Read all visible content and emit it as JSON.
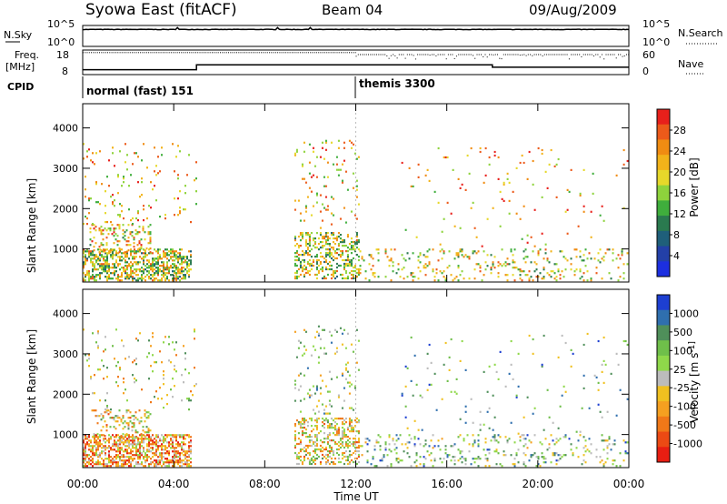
{
  "header": {
    "station": "Syowa East (fitACF)",
    "beam": "Beam 04",
    "date": "09/Aug/2009"
  },
  "chart_data": [
    {
      "type": "line",
      "panel": "noise",
      "left_label": "N.Sky",
      "right_label": "N.Search",
      "left_ticks": [
        "10^5",
        "10^0"
      ],
      "right_ticks": [
        "10^5",
        "10^0"
      ],
      "series": [
        {
          "name": "N.Sky",
          "style": "solid",
          "description_level": 0.85
        },
        {
          "name": "N.Search",
          "style": "dotted"
        }
      ],
      "ylim": [
        0,
        5
      ]
    },
    {
      "type": "line",
      "panel": "freq-nave",
      "left_label_top": "Freq.",
      "left_label_bottom": "[MHz]",
      "right_label": "Nave",
      "left_ticks": [
        "18",
        "8"
      ],
      "right_ticks": [
        "60",
        "0"
      ],
      "freq_steps": [
        {
          "x": 0,
          "y": 10
        },
        {
          "x": 5,
          "y": 10
        },
        {
          "x": 5,
          "y": 12
        },
        {
          "x": 18,
          "y": 12
        },
        {
          "x": 18,
          "y": 11
        },
        {
          "x": 24,
          "y": 11
        }
      ],
      "nave_levels": [
        {
          "from": 0,
          "to": 12,
          "y": 55
        },
        {
          "from": 12,
          "to": 24,
          "y": 50
        }
      ],
      "ylim": [
        8,
        18
      ]
    },
    {
      "type": "table",
      "panel": "cpid",
      "label": "CPID",
      "modes": [
        {
          "start": 0,
          "name": "normal (fast) 151"
        },
        {
          "start": 12,
          "name": "themis 3300"
        }
      ]
    },
    {
      "type": "heatmap",
      "panel": "power",
      "ylabel": "Slant Range [km]",
      "yticks": [
        1000,
        2000,
        3000,
        4000
      ],
      "ylim": [
        180,
        4600
      ],
      "colorbar_label": "Power [dB]",
      "colorbar_ticks": [
        "28",
        "24",
        "20",
        "16",
        "12",
        "8",
        "4"
      ],
      "colorbar_colors": [
        "#e8201b",
        "#ec5a1a",
        "#f08c12",
        "#f2b31a",
        "#e6d82a",
        "#8ed33c",
        "#3fae3c",
        "#2a7a4f",
        "#1f5f7a",
        "#2340a8",
        "#1c2fe0"
      ],
      "blobs": [
        {
          "t0": 0.0,
          "t1": 4.8,
          "r0": 200,
          "r1": 1000,
          "dens": 0.55,
          "v": 0.5
        },
        {
          "t0": 0.3,
          "t1": 3.0,
          "r0": 900,
          "r1": 1600,
          "dens": 0.22,
          "v": 0.4
        },
        {
          "t0": 0.0,
          "t1": 5.0,
          "r0": 1600,
          "r1": 3600,
          "dens": 0.05,
          "v": 0.35
        },
        {
          "t0": 9.3,
          "t1": 12.2,
          "r0": 250,
          "r1": 1400,
          "dens": 0.35,
          "v": 0.5
        },
        {
          "t0": 9.3,
          "t1": 12.2,
          "r0": 1500,
          "r1": 3700,
          "dens": 0.06,
          "v": 0.35
        },
        {
          "t0": 12.0,
          "t1": 24.0,
          "r0": 200,
          "r1": 1000,
          "dens": 0.12,
          "v": 0.45
        },
        {
          "t0": 14.0,
          "t1": 24.0,
          "r0": 1000,
          "r1": 3500,
          "dens": 0.018,
          "v": 0.3
        }
      ]
    },
    {
      "type": "heatmap",
      "panel": "velocity",
      "ylabel": "Slant Range [km]",
      "yticks": [
        1000,
        2000,
        3000,
        4000
      ],
      "ylim": [
        180,
        4600
      ],
      "colorbar_label": "Velocity [m s^-1]",
      "colorbar_ticks": [
        "1000",
        "500",
        "100",
        "25",
        "-25",
        "-100",
        "-500",
        "-1000"
      ],
      "colorbar_colors": [
        "#1d3fd1",
        "#2f6fae",
        "#4f8f5a",
        "#6fbf4a",
        "#8fd84a",
        "#bcbcbc",
        "#f0c020",
        "#f5a020",
        "#f07818",
        "#ec4a14",
        "#e81e12"
      ],
      "blobs": [
        {
          "t0": 0.0,
          "t1": 4.8,
          "r0": 200,
          "r1": 1000,
          "dens": 0.55,
          "v": 0.75
        },
        {
          "t0": 0.3,
          "t1": 3.0,
          "r0": 900,
          "r1": 1600,
          "dens": 0.22,
          "v": 0.6
        },
        {
          "t0": 0.0,
          "t1": 5.0,
          "r0": 1600,
          "r1": 3600,
          "dens": 0.05,
          "v": 0.55
        },
        {
          "t0": 9.3,
          "t1": 12.2,
          "r0": 250,
          "r1": 1400,
          "dens": 0.35,
          "v": 0.6
        },
        {
          "t0": 9.3,
          "t1": 12.2,
          "r0": 1500,
          "r1": 3700,
          "dens": 0.06,
          "v": 0.45
        },
        {
          "t0": 12.0,
          "t1": 24.0,
          "r0": 200,
          "r1": 1000,
          "dens": 0.12,
          "v": 0.4
        },
        {
          "t0": 14.0,
          "t1": 24.0,
          "r0": 1000,
          "r1": 3500,
          "dens": 0.018,
          "v": 0.35
        }
      ]
    }
  ],
  "xaxis": {
    "label": "Time UT",
    "ticks": [
      "00:00",
      "04:00",
      "08:00",
      "12:00",
      "16:00",
      "20:00",
      "00:00"
    ],
    "range": [
      0,
      24
    ]
  }
}
